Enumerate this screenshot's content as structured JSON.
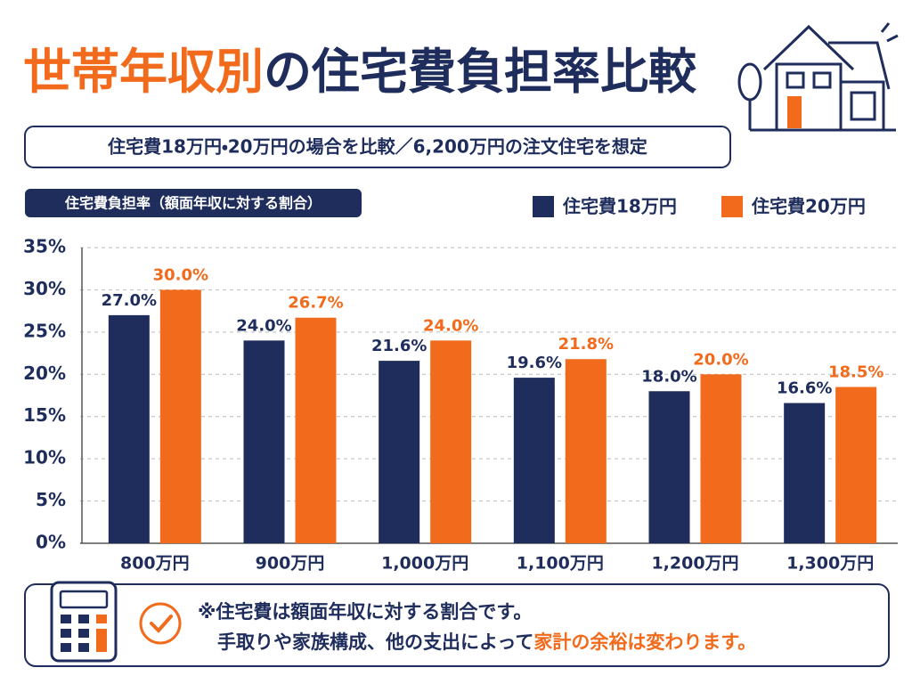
{
  "chart_data": {
    "type": "bar",
    "title": [
      "世帯年収別",
      "の住宅費負担率比較"
    ],
    "subtitle": "住宅費18万円・20万円の場合を比較／6,200万円の注文住宅を想定",
    "y_label": "住宅費負担率（額面年収に対する割合）",
    "categories": [
      "800万円",
      "900万円",
      "1,000万円",
      "1,100万円",
      "1,200万円",
      "1,300万円"
    ],
    "series": [
      {
        "name": "住宅費18万円",
        "color": "#1f2d5c",
        "values": [
          27.0,
          24.0,
          21.6,
          19.6,
          18.0,
          16.6
        ],
        "value_labels": [
          "27.0%",
          "24.0%",
          "21.6%",
          "19.6%",
          "18.0%",
          "16.6%"
        ]
      },
      {
        "name": "住宅費20万円",
        "color": "#f26b1d",
        "values": [
          30.0,
          26.7,
          24.0,
          21.8,
          20.0,
          18.5
        ],
        "value_labels": [
          "30.0%",
          "26.7%",
          "24.0%",
          "21.8%",
          "20.0%",
          "18.5%"
        ]
      }
    ],
    "ylim": [
      0,
      35
    ],
    "yticks": [
      {
        "value": 0,
        "label": "0%"
      },
      {
        "value": 5,
        "label": "5%"
      },
      {
        "value": 10,
        "label": "10%"
      },
      {
        "value": 15,
        "label": "15%"
      },
      {
        "value": 20,
        "label": "20%"
      },
      {
        "value": 25,
        "label": "25%"
      },
      {
        "value": 30,
        "label": "30%"
      },
      {
        "value": 35,
        "label": "35%"
      }
    ],
    "grid": true,
    "legend": "top-right"
  },
  "note": {
    "line1": "※住宅費は額面年収に対する割合です。",
    "line2": [
      "手取りや家族構成、他の支出によって",
      "家計の余裕は変わります。"
    ]
  }
}
